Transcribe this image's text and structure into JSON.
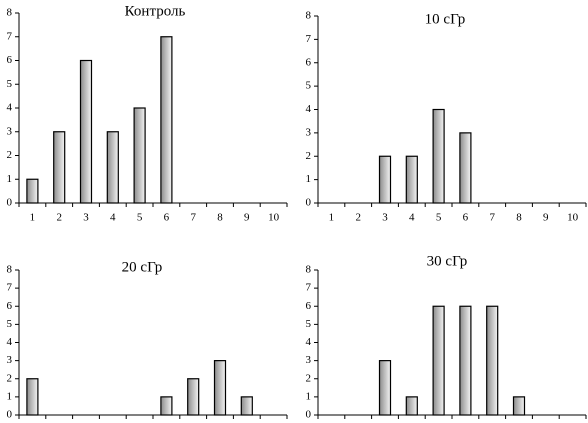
{
  "chart_data": [
    {
      "type": "bar",
      "title": "Контроль",
      "categories": [
        "1",
        "2",
        "3",
        "4",
        "5",
        "6",
        "7",
        "8",
        "9",
        "10"
      ],
      "values": [
        1,
        3,
        6,
        3,
        4,
        7,
        0,
        0,
        0,
        0
      ],
      "ylim": [
        0,
        8
      ],
      "yticks": [
        0,
        1,
        2,
        3,
        4,
        5,
        6,
        7,
        8
      ]
    },
    {
      "type": "bar",
      "title": "10 сГр",
      "categories": [
        "1",
        "2",
        "3",
        "4",
        "5",
        "6",
        "7",
        "8",
        "9",
        "10"
      ],
      "values": [
        0,
        0,
        2,
        2,
        4,
        3,
        0,
        0,
        0,
        0
      ],
      "ylim": [
        0,
        8
      ],
      "yticks": [
        0,
        1,
        2,
        3,
        4,
        5,
        6,
        7,
        8
      ]
    },
    {
      "type": "bar",
      "title": "20 сГр",
      "categories": [
        null,
        null,
        null,
        null,
        null,
        null,
        null,
        null,
        null,
        null
      ],
      "values": [
        2,
        0,
        0,
        0,
        0,
        1,
        2,
        3,
        1,
        0
      ],
      "ylim": [
        0,
        8
      ],
      "yticks": [
        0,
        1,
        2,
        3,
        4,
        5,
        6,
        7,
        8
      ]
    },
    {
      "type": "bar",
      "title": "30 сГр",
      "categories": [
        null,
        null,
        null,
        null,
        null,
        null,
        null,
        null,
        null,
        null
      ],
      "values": [
        0,
        0,
        3,
        1,
        6,
        6,
        6,
        1,
        0,
        0
      ],
      "ylim": [
        0,
        8
      ],
      "yticks": [
        0,
        1,
        2,
        3,
        4,
        5,
        6,
        7,
        8
      ]
    }
  ]
}
